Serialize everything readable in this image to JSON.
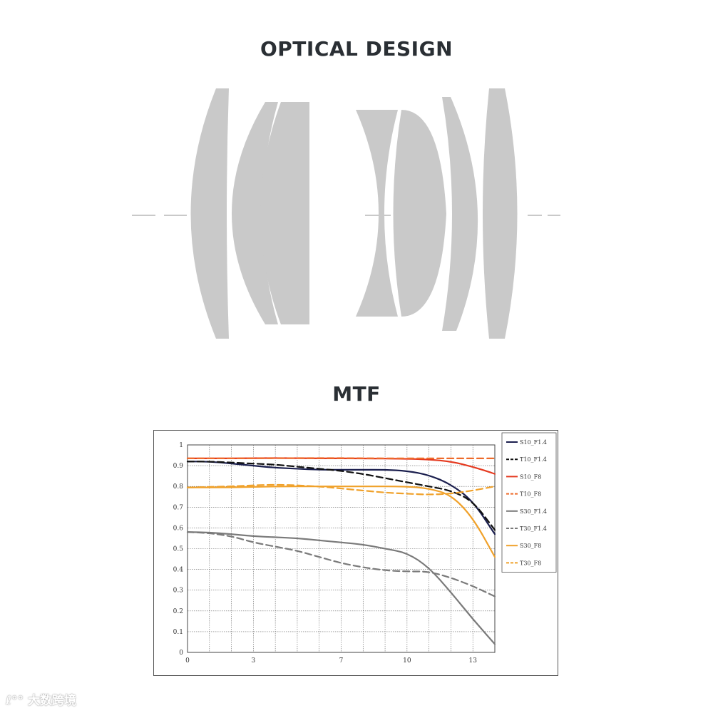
{
  "titles": {
    "optical_design": "OPTICAL DESIGN",
    "mtf": "MTF"
  },
  "colors": {
    "lens_element": "#c9c9c9",
    "axis_line": "#c9c9c9",
    "navy": "#1b1f4e",
    "black": "#111111",
    "red": "#e53a20",
    "orange_red": "#ee6a2a",
    "gray": "#7a7a7a",
    "orange": "#f0a12a"
  },
  "watermark": {
    "text": "大数跨境"
  },
  "chart_data": {
    "type": "line",
    "title": "",
    "xlabel": "",
    "ylabel": "",
    "xlim": [
      0,
      14
    ],
    "ylim": [
      0,
      1
    ],
    "x_ticks": [
      0,
      3,
      7,
      10,
      13
    ],
    "y_ticks": [
      0,
      0.1,
      0.2,
      0.3,
      0.4,
      0.5,
      0.6,
      0.7,
      0.8,
      0.9,
      1
    ],
    "x_tick_labels": [
      "0",
      "3",
      "7",
      "10",
      "13"
    ],
    "y_tick_labels": [
      "0",
      "0.1",
      "0.2",
      "0.3",
      "0.4",
      "0.5",
      "0.6",
      "0.7",
      "0.8",
      "0.9",
      "1"
    ],
    "grid": true,
    "legend_position": "right",
    "series": [
      {
        "name": "S10_F1.4",
        "color": "#1b1f4e",
        "dashed": false,
        "points": [
          [
            0,
            0.92
          ],
          [
            1,
            0.92
          ],
          [
            2,
            0.91
          ],
          [
            3,
            0.9
          ],
          [
            4,
            0.89
          ],
          [
            5,
            0.885
          ],
          [
            6,
            0.88
          ],
          [
            7,
            0.88
          ],
          [
            8,
            0.88
          ],
          [
            9,
            0.88
          ],
          [
            10,
            0.875
          ],
          [
            11,
            0.855
          ],
          [
            12,
            0.81
          ],
          [
            13,
            0.73
          ],
          [
            14,
            0.57
          ]
        ]
      },
      {
        "name": "T10_F1.4",
        "color": "#111111",
        "dashed": true,
        "points": [
          [
            0,
            0.92
          ],
          [
            1,
            0.92
          ],
          [
            2,
            0.915
          ],
          [
            3,
            0.91
          ],
          [
            4,
            0.905
          ],
          [
            5,
            0.895
          ],
          [
            6,
            0.885
          ],
          [
            7,
            0.875
          ],
          [
            8,
            0.86
          ],
          [
            9,
            0.84
          ],
          [
            10,
            0.82
          ],
          [
            11,
            0.8
          ],
          [
            12,
            0.78
          ],
          [
            13,
            0.73
          ],
          [
            14,
            0.59
          ]
        ]
      },
      {
        "name": "S10_F8",
        "color": "#e53a20",
        "dashed": false,
        "points": [
          [
            0,
            0.935
          ],
          [
            2,
            0.935
          ],
          [
            4,
            0.937
          ],
          [
            6,
            0.935
          ],
          [
            8,
            0.935
          ],
          [
            10,
            0.933
          ],
          [
            11,
            0.93
          ],
          [
            12,
            0.92
          ],
          [
            13,
            0.895
          ],
          [
            14,
            0.86
          ]
        ]
      },
      {
        "name": "T10_F8",
        "color": "#ee6a2a",
        "dashed": true,
        "points": [
          [
            0,
            0.935
          ],
          [
            3,
            0.935
          ],
          [
            6,
            0.937
          ],
          [
            9,
            0.935
          ],
          [
            12,
            0.935
          ],
          [
            13,
            0.935
          ],
          [
            14,
            0.935
          ]
        ]
      },
      {
        "name": "S30_F1.4",
        "color": "#7a7a7a",
        "dashed": false,
        "points": [
          [
            0,
            0.58
          ],
          [
            1,
            0.578
          ],
          [
            2,
            0.57
          ],
          [
            3,
            0.56
          ],
          [
            4,
            0.555
          ],
          [
            5,
            0.55
          ],
          [
            6,
            0.54
          ],
          [
            7,
            0.53
          ],
          [
            8,
            0.52
          ],
          [
            9,
            0.5
          ],
          [
            10,
            0.48
          ],
          [
            11,
            0.41
          ],
          [
            12,
            0.29
          ],
          [
            13,
            0.16
          ],
          [
            14,
            0.04
          ]
        ]
      },
      {
        "name": "T30_F1.4",
        "color": "#7a7a7a",
        "dashed": true,
        "points": [
          [
            0,
            0.58
          ],
          [
            1,
            0.575
          ],
          [
            2,
            0.56
          ],
          [
            3,
            0.53
          ],
          [
            4,
            0.51
          ],
          [
            5,
            0.49
          ],
          [
            6,
            0.46
          ],
          [
            7,
            0.43
          ],
          [
            8,
            0.41
          ],
          [
            9,
            0.395
          ],
          [
            10,
            0.39
          ],
          [
            11,
            0.39
          ],
          [
            12,
            0.36
          ],
          [
            13,
            0.32
          ],
          [
            14,
            0.27
          ]
        ]
      },
      {
        "name": "S30_F8",
        "color": "#f0a12a",
        "dashed": false,
        "points": [
          [
            0,
            0.795
          ],
          [
            2,
            0.795
          ],
          [
            4,
            0.8
          ],
          [
            6,
            0.8
          ],
          [
            8,
            0.8
          ],
          [
            10,
            0.8
          ],
          [
            11,
            0.79
          ],
          [
            12,
            0.76
          ],
          [
            13,
            0.65
          ],
          [
            14,
            0.46
          ]
        ]
      },
      {
        "name": "T30_F8",
        "color": "#f0a12a",
        "dashed": true,
        "points": [
          [
            0,
            0.795
          ],
          [
            2,
            0.8
          ],
          [
            4,
            0.81
          ],
          [
            6,
            0.8
          ],
          [
            7,
            0.79
          ],
          [
            8,
            0.78
          ],
          [
            9,
            0.77
          ],
          [
            10,
            0.765
          ],
          [
            11,
            0.76
          ],
          [
            12,
            0.765
          ],
          [
            13,
            0.78
          ],
          [
            14,
            0.8
          ]
        ]
      }
    ]
  }
}
